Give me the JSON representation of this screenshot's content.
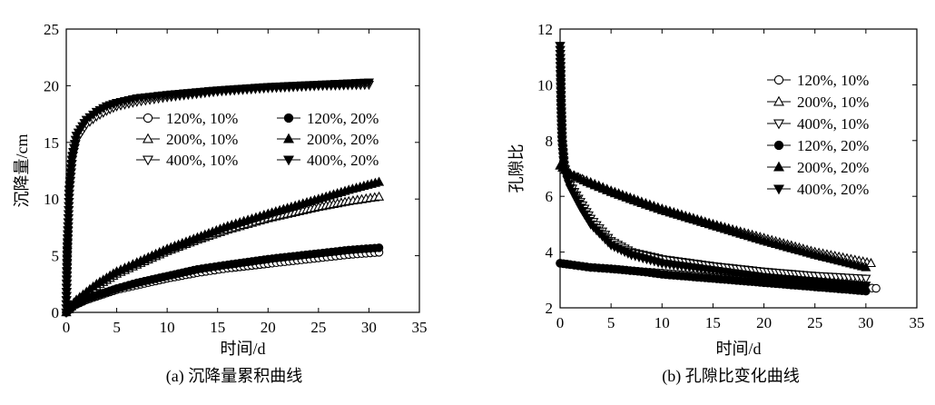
{
  "chart_data": [
    {
      "type": "scatter",
      "caption": "(a) 沉降量累积曲线",
      "xlabel": "时间/d",
      "ylabel": "沉降量/cm",
      "xlim": [
        0,
        35
      ],
      "ylim": [
        0,
        25
      ],
      "xticks": [
        "0",
        "5",
        "10",
        "15",
        "20",
        "25",
        "30",
        "35"
      ],
      "yticks": [
        "0",
        "5",
        "10",
        "15",
        "20",
        "25"
      ],
      "legend_placement": "center-right, two columns",
      "series": [
        {
          "name": "120%, 10%",
          "marker": "circle-open",
          "x": [
            0,
            0.5,
            1,
            2,
            3,
            4,
            5,
            7,
            10,
            13,
            16,
            20,
            25,
            28,
            31
          ],
          "y": [
            0,
            0.4,
            0.7,
            1.1,
            1.4,
            1.7,
            2.0,
            2.4,
            3.0,
            3.5,
            3.9,
            4.3,
            4.8,
            5.1,
            5.3
          ]
        },
        {
          "name": "200%, 10%",
          "marker": "triangle-up-open",
          "x": [
            0,
            0.5,
            1,
            2,
            3,
            5,
            7,
            10,
            13,
            16,
            20,
            25,
            28,
            31
          ],
          "y": [
            0,
            0.5,
            1.0,
            1.7,
            2.3,
            3.4,
            4.2,
            5.4,
            6.4,
            7.3,
            8.3,
            9.3,
            9.8,
            10.2
          ]
        },
        {
          "name": "400%, 10%",
          "marker": "triangle-down-open",
          "x": [
            0,
            0.1,
            0.3,
            0.6,
            1,
            2,
            3,
            4,
            5,
            7,
            10,
            15,
            20,
            25,
            30
          ],
          "y": [
            0,
            5.0,
            10.5,
            13.5,
            15.2,
            16.6,
            17.3,
            17.8,
            18.2,
            18.6,
            19.0,
            19.5,
            19.8,
            20.0,
            20.1
          ]
        },
        {
          "name": "120%, 20%",
          "marker": "circle-filled",
          "x": [
            0,
            0.5,
            1,
            2,
            3,
            4,
            5,
            7,
            10,
            13,
            16,
            20,
            25,
            28,
            31
          ],
          "y": [
            0,
            0.4,
            0.7,
            1.2,
            1.5,
            1.8,
            2.1,
            2.6,
            3.2,
            3.8,
            4.2,
            4.7,
            5.2,
            5.5,
            5.7
          ]
        },
        {
          "name": "200%, 20%",
          "marker": "triangle-up-filled",
          "x": [
            0,
            0.5,
            1,
            2,
            3,
            5,
            7,
            10,
            13,
            16,
            20,
            25,
            28,
            31
          ],
          "y": [
            0,
            0.6,
            1.1,
            1.8,
            2.5,
            3.6,
            4.4,
            5.6,
            6.6,
            7.6,
            8.7,
            10.0,
            10.8,
            11.5
          ]
        },
        {
          "name": "400%, 20%",
          "marker": "triangle-down-filled",
          "x": [
            0,
            0.1,
            0.3,
            0.6,
            1,
            2,
            3,
            4,
            5,
            7,
            10,
            15,
            20,
            25,
            30
          ],
          "y": [
            0,
            5.5,
            10.8,
            13.8,
            15.6,
            17.0,
            17.7,
            18.2,
            18.5,
            18.9,
            19.2,
            19.6,
            19.9,
            20.1,
            20.3
          ]
        }
      ]
    },
    {
      "type": "scatter",
      "caption": "(b) 孔隙比变化曲线",
      "xlabel": "时间/d",
      "ylabel": "孔隙比",
      "xlim": [
        0,
        35
      ],
      "ylim": [
        2,
        12
      ],
      "xticks": [
        "0",
        "5",
        "10",
        "15",
        "20",
        "25",
        "30",
        "35"
      ],
      "yticks": [
        "2",
        "4",
        "6",
        "8",
        "10",
        "12"
      ],
      "legend_placement": "top-right",
      "series": [
        {
          "name": "120%, 10%",
          "marker": "circle-open",
          "x": [
            0,
            1,
            3,
            5,
            8,
            10,
            15,
            20,
            25,
            31
          ],
          "y": [
            3.6,
            3.55,
            3.45,
            3.4,
            3.3,
            3.25,
            3.1,
            2.95,
            2.8,
            2.7
          ]
        },
        {
          "name": "200%, 10%",
          "marker": "triangle-up-open",
          "x": [
            0,
            0.5,
            1,
            3,
            5,
            8,
            10,
            15,
            20,
            25,
            30.5
          ],
          "y": [
            7.1,
            6.95,
            6.8,
            6.5,
            6.2,
            5.8,
            5.55,
            5.0,
            4.5,
            4.0,
            3.6
          ]
        },
        {
          "name": "400%, 10%",
          "marker": "triangle-down-open",
          "x": [
            0,
            0.05,
            0.1,
            0.2,
            0.4,
            0.7,
            1,
            2,
            3,
            5,
            7,
            10,
            15,
            20,
            25,
            30
          ],
          "y": [
            11.4,
            10.5,
            9.3,
            8.0,
            7.1,
            6.7,
            6.4,
            5.8,
            5.2,
            4.4,
            4.0,
            3.75,
            3.5,
            3.3,
            3.15,
            3.05
          ]
        },
        {
          "name": "120%, 20%",
          "marker": "circle-filled",
          "x": [
            0,
            1,
            3,
            5,
            8,
            10,
            15,
            20,
            25,
            30
          ],
          "y": [
            3.6,
            3.55,
            3.45,
            3.4,
            3.3,
            3.2,
            3.05,
            2.9,
            2.75,
            2.6
          ]
        },
        {
          "name": "200%, 20%",
          "marker": "triangle-up-filled",
          "x": [
            0,
            0.5,
            1,
            3,
            5,
            8,
            10,
            15,
            20,
            25,
            30
          ],
          "y": [
            7.1,
            6.95,
            6.8,
            6.45,
            6.15,
            5.75,
            5.5,
            4.95,
            4.4,
            3.9,
            3.45
          ]
        },
        {
          "name": "400%, 20%",
          "marker": "triangle-down-filled",
          "x": [
            0,
            0.05,
            0.1,
            0.2,
            0.4,
            0.7,
            1,
            2,
            3,
            5,
            7,
            10,
            15,
            20,
            25,
            30
          ],
          "y": [
            11.4,
            10.4,
            9.2,
            7.9,
            7.0,
            6.6,
            6.3,
            5.6,
            5.0,
            4.25,
            3.9,
            3.6,
            3.35,
            3.1,
            2.95,
            2.8
          ]
        }
      ]
    }
  ]
}
